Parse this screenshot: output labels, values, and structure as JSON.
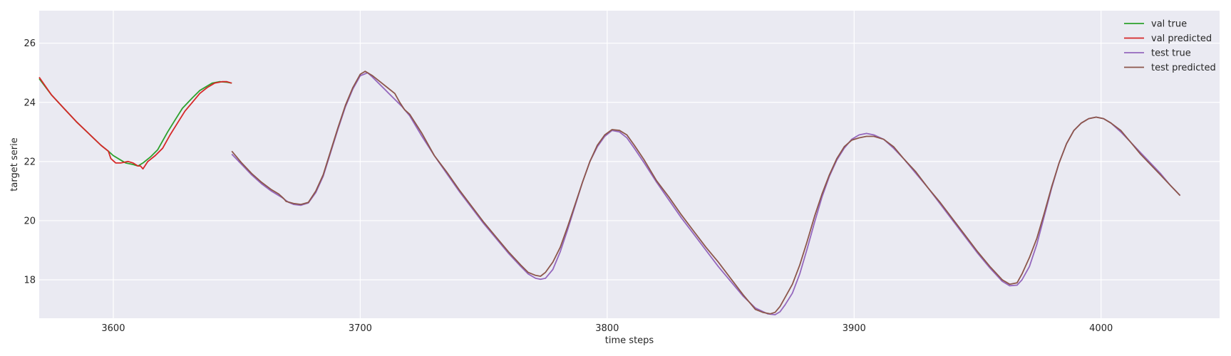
{
  "chart_data": {
    "type": "line",
    "title": "",
    "xlabel": "time steps",
    "ylabel": "target serie",
    "xlim": [
      3570,
      4048
    ],
    "ylim": [
      16.7,
      27.1
    ],
    "xticks": [
      3600,
      3700,
      3800,
      3900,
      4000
    ],
    "yticks": [
      18,
      20,
      22,
      24,
      26
    ],
    "grid": true,
    "legend_position": "top-right",
    "series": [
      {
        "name": "val true",
        "color": "#2ca02c",
        "x": [
          3570,
          3575,
          3580,
          3585,
          3590,
          3595,
          3598,
          3600,
          3603,
          3605,
          3608,
          3610,
          3612,
          3615,
          3618,
          3620,
          3622,
          3625,
          3628,
          3632,
          3635,
          3638,
          3640,
          3643,
          3646,
          3648
        ],
        "y": [
          24.8,
          24.25,
          23.8,
          23.35,
          22.95,
          22.55,
          22.35,
          22.2,
          22.05,
          21.95,
          21.9,
          21.85,
          21.95,
          22.15,
          22.4,
          22.7,
          23.0,
          23.4,
          23.8,
          24.15,
          24.4,
          24.55,
          24.65,
          24.7,
          24.68,
          24.65
        ]
      },
      {
        "name": "val predicted",
        "color": "#d62728",
        "x": [
          3570,
          3575,
          3580,
          3585,
          3590,
          3595,
          3598,
          3599,
          3601,
          3603,
          3606,
          3608,
          3610,
          3611,
          3612,
          3614,
          3617,
          3620,
          3623,
          3626,
          3629,
          3632,
          3635,
          3638,
          3641,
          3644,
          3646,
          3648
        ],
        "y": [
          24.85,
          24.25,
          23.8,
          23.35,
          22.95,
          22.55,
          22.35,
          22.1,
          21.95,
          21.95,
          22.0,
          21.95,
          21.85,
          21.85,
          21.75,
          22.0,
          22.2,
          22.45,
          22.9,
          23.3,
          23.7,
          24.0,
          24.3,
          24.5,
          24.65,
          24.7,
          24.7,
          24.65
        ]
      },
      {
        "name": "test true",
        "color": "#9467bd",
        "x": [
          3648,
          3652,
          3656,
          3660,
          3664,
          3668,
          3671,
          3673,
          3676,
          3679,
          3682,
          3685,
          3688,
          3691,
          3694,
          3697,
          3700,
          3703,
          3705,
          3708,
          3711,
          3714,
          3717,
          3720,
          3725,
          3730,
          3735,
          3740,
          3745,
          3750,
          3755,
          3760,
          3765,
          3768,
          3771,
          3773,
          3775,
          3778,
          3781,
          3784,
          3787,
          3790,
          3793,
          3796,
          3799,
          3802,
          3805,
          3808,
          3811,
          3815,
          3820,
          3825,
          3830,
          3835,
          3840,
          3845,
          3850,
          3855,
          3860,
          3865,
          3868,
          3870,
          3872,
          3875,
          3878,
          3881,
          3884,
          3887,
          3890,
          3893,
          3896,
          3899,
          3902,
          3905,
          3908,
          3912,
          3916,
          3920,
          3925,
          3930,
          3935,
          3940,
          3945,
          3950,
          3955,
          3960,
          3963,
          3966,
          3968,
          3971,
          3974,
          3977,
          3980,
          3983,
          3986,
          3989,
          3992,
          3995,
          3998,
          4001,
          4004,
          4008,
          4012,
          4016,
          4020,
          4024,
          4028,
          4032
        ],
        "y": [
          22.25,
          21.9,
          21.55,
          21.25,
          21.0,
          20.8,
          20.62,
          20.55,
          20.52,
          20.6,
          20.95,
          21.5,
          22.3,
          23.1,
          23.85,
          24.45,
          24.9,
          25.0,
          24.85,
          24.6,
          24.35,
          24.1,
          23.85,
          23.55,
          22.85,
          22.2,
          21.6,
          21.0,
          20.45,
          19.9,
          19.4,
          18.9,
          18.45,
          18.2,
          18.05,
          18.02,
          18.05,
          18.35,
          18.95,
          19.7,
          20.5,
          21.3,
          22.0,
          22.5,
          22.85,
          23.05,
          23.0,
          22.8,
          22.45,
          21.95,
          21.3,
          20.7,
          20.1,
          19.55,
          19.0,
          18.45,
          17.95,
          17.45,
          17.05,
          16.85,
          16.82,
          16.92,
          17.15,
          17.55,
          18.2,
          19.05,
          19.95,
          20.8,
          21.5,
          22.05,
          22.45,
          22.75,
          22.9,
          22.95,
          22.9,
          22.75,
          22.45,
          22.1,
          21.6,
          21.1,
          20.55,
          20.0,
          19.45,
          18.9,
          18.4,
          17.95,
          17.8,
          17.82,
          18.0,
          18.45,
          19.2,
          20.15,
          21.1,
          21.95,
          22.6,
          23.05,
          23.3,
          23.45,
          23.5,
          23.45,
          23.3,
          23.0,
          22.65,
          22.3,
          21.95,
          21.6,
          21.2,
          20.85
        ]
      },
      {
        "name": "test predicted",
        "color": "#8c564b",
        "x": [
          3648,
          3652,
          3656,
          3660,
          3664,
          3667,
          3669,
          3670,
          3673,
          3676,
          3679,
          3682,
          3685,
          3688,
          3691,
          3694,
          3697,
          3700,
          3702,
          3705,
          3708,
          3711,
          3714,
          3716,
          3718,
          3720,
          3725,
          3730,
          3735,
          3740,
          3745,
          3750,
          3755,
          3760,
          3765,
          3768,
          3771,
          3773,
          3775,
          3778,
          3781,
          3784,
          3787,
          3790,
          3793,
          3796,
          3799,
          3802,
          3805,
          3808,
          3811,
          3815,
          3820,
          3825,
          3830,
          3835,
          3840,
          3845,
          3850,
          3855,
          3860,
          3863,
          3866,
          3868,
          3870,
          3872,
          3875,
          3878,
          3881,
          3884,
          3887,
          3890,
          3893,
          3896,
          3899,
          3902,
          3905,
          3908,
          3912,
          3916,
          3920,
          3925,
          3930,
          3935,
          3940,
          3945,
          3950,
          3955,
          3960,
          3963,
          3966,
          3968,
          3971,
          3974,
          3977,
          3980,
          3983,
          3986,
          3989,
          3992,
          3995,
          3998,
          4001,
          4004,
          4008,
          4012,
          4016,
          4020,
          4024,
          4028,
          4032
        ],
        "y": [
          22.35,
          21.95,
          21.6,
          21.3,
          21.05,
          20.9,
          20.75,
          20.65,
          20.58,
          20.55,
          20.62,
          21.0,
          21.55,
          22.35,
          23.15,
          23.9,
          24.5,
          24.95,
          25.05,
          24.9,
          24.7,
          24.5,
          24.3,
          24.0,
          23.75,
          23.6,
          22.95,
          22.2,
          21.65,
          21.05,
          20.5,
          19.95,
          19.45,
          18.95,
          18.5,
          18.25,
          18.15,
          18.12,
          18.25,
          18.6,
          19.1,
          19.8,
          20.55,
          21.3,
          22.0,
          22.55,
          22.9,
          23.08,
          23.05,
          22.9,
          22.55,
          22.05,
          21.35,
          20.8,
          20.2,
          19.65,
          19.1,
          18.6,
          18.05,
          17.5,
          17.0,
          16.9,
          16.85,
          16.9,
          17.1,
          17.4,
          17.85,
          18.5,
          19.3,
          20.15,
          20.9,
          21.55,
          22.1,
          22.5,
          22.72,
          22.8,
          22.85,
          22.85,
          22.75,
          22.5,
          22.1,
          21.65,
          21.1,
          20.6,
          20.05,
          19.5,
          18.95,
          18.45,
          18.0,
          17.85,
          17.9,
          18.2,
          18.75,
          19.4,
          20.25,
          21.15,
          21.95,
          22.6,
          23.05,
          23.3,
          23.45,
          23.5,
          23.45,
          23.3,
          23.05,
          22.65,
          22.25,
          21.9,
          21.55,
          21.2,
          20.85
        ]
      }
    ]
  }
}
